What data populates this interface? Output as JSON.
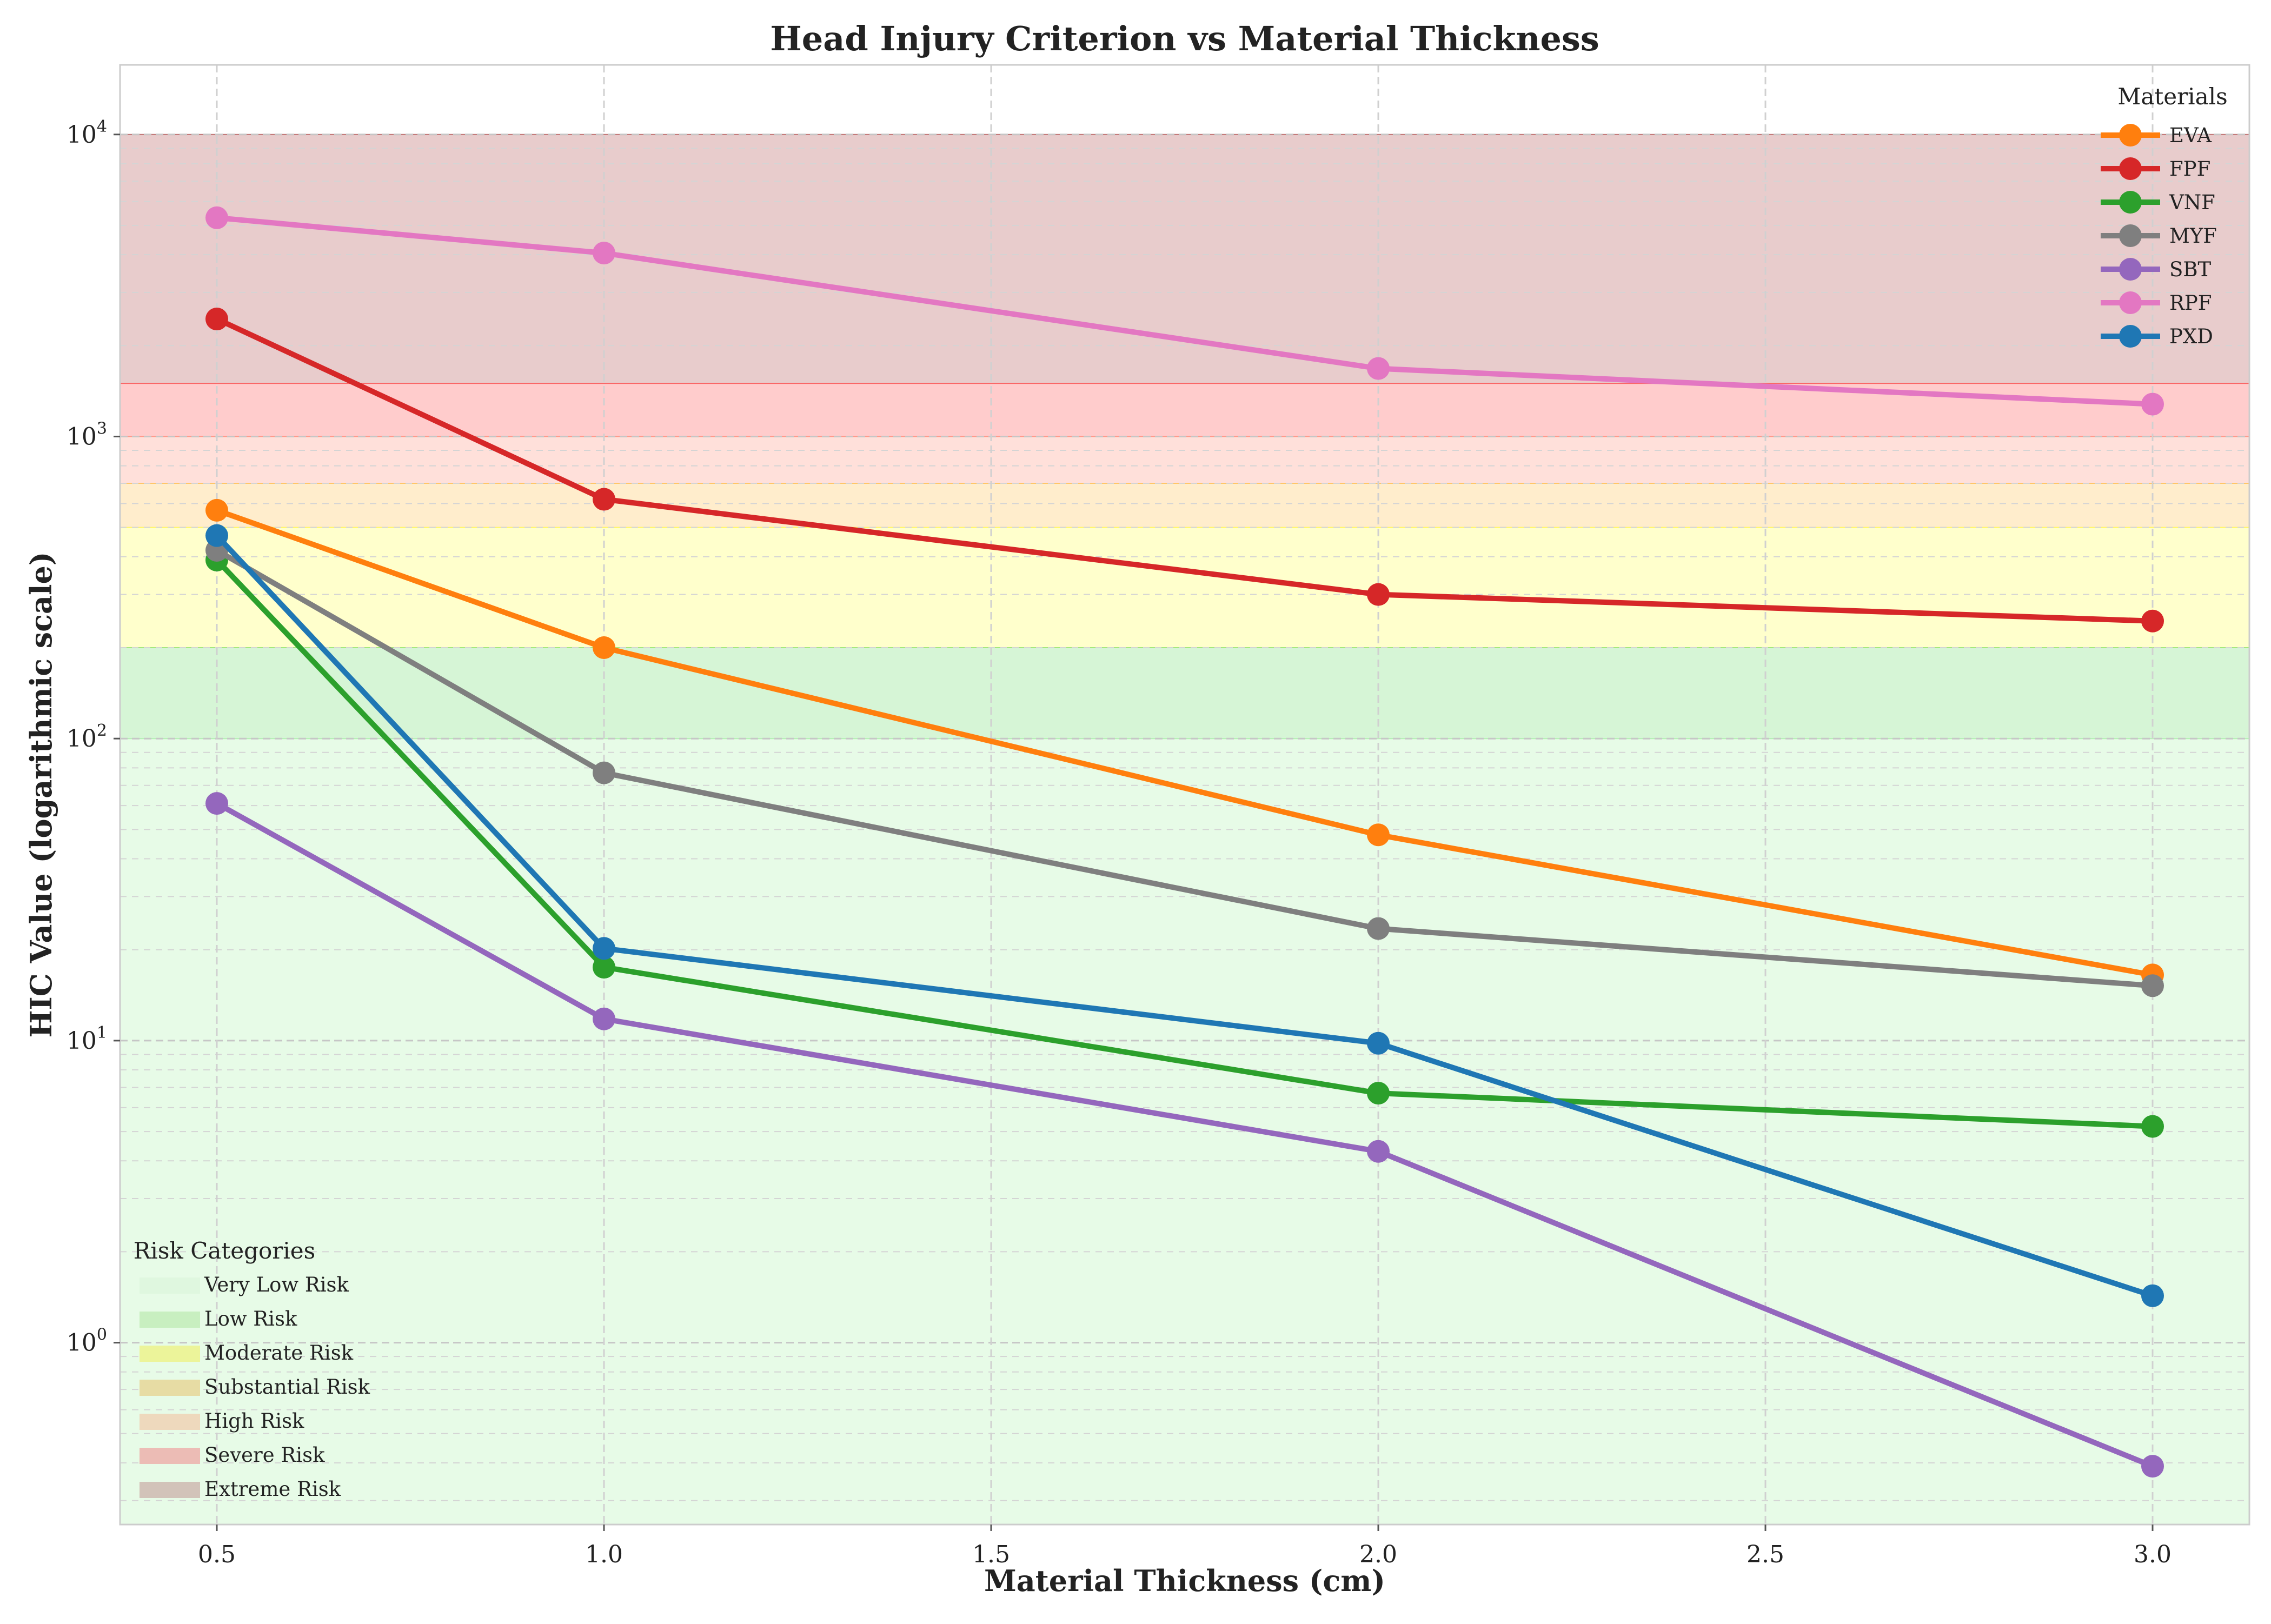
{
  "chart_data": {
    "type": "line",
    "title": "Head Injury Criterion vs Material Thickness",
    "xlabel": "Material Thickness (cm)",
    "ylabel": "HIC Value (logarithmic scale)",
    "xlim": [
      0.375,
      3.125
    ],
    "ylim": [
      0.25,
      17000
    ],
    "yscale": "log",
    "grid": true,
    "x_ticks": [
      0.5,
      1.0,
      1.5,
      2.0,
      2.5,
      3.0
    ],
    "x_tick_labels": [
      "0.5",
      "1.0",
      "1.5",
      "2.0",
      "2.5",
      "3.0"
    ],
    "y_ticks": [
      1,
      10,
      100,
      1000,
      10000
    ],
    "y_tick_labels": [
      "10^0",
      "10^1",
      "10^2",
      "10^3",
      "10^4"
    ],
    "x": [
      0.5,
      1.0,
      2.0,
      3.0
    ],
    "series": [
      {
        "name": "EVA",
        "color": "#ff7f0e",
        "values": [
          570,
          200,
          48,
          16.5
        ]
      },
      {
        "name": "FPF",
        "color": "#d62728",
        "values": [
          2450,
          620,
          300,
          245
        ]
      },
      {
        "name": "VNF",
        "color": "#2ca02c",
        "values": [
          390,
          17.5,
          6.7,
          5.2
        ]
      },
      {
        "name": "MYF",
        "color": "#7f7f7f",
        "values": [
          420,
          77,
          23.5,
          15.2
        ]
      },
      {
        "name": "SBT",
        "color": "#9467bd",
        "values": [
          61,
          11.8,
          4.3,
          0.39
        ]
      },
      {
        "name": "RPF",
        "color": "#e377c2",
        "values": [
          5300,
          4050,
          1680,
          1280
        ]
      },
      {
        "name": "PXD",
        "color": "#1f77b4",
        "values": [
          470,
          20.2,
          9.8,
          1.43
        ]
      }
    ],
    "legend_title": "Materials",
    "legend_position": "top-right",
    "risk_legend_title": "Risk Categories",
    "risk_legend_position": "bottom-left",
    "risk_bands": [
      {
        "name": "Very Low Risk",
        "from": 0,
        "to": 100,
        "color": "#90ee90",
        "opacity": 0.22
      },
      {
        "name": "Low Risk",
        "from": 100,
        "to": 200,
        "color": "#32cd32",
        "opacity": 0.2
      },
      {
        "name": "Moderate Risk",
        "from": 200,
        "to": 500,
        "color": "#ffff00",
        "opacity": 0.2
      },
      {
        "name": "Substantial Risk",
        "from": 500,
        "to": 700,
        "color": "#ffa500",
        "opacity": 0.2
      },
      {
        "name": "High Risk",
        "from": 700,
        "to": 1000,
        "color": "#ff6347",
        "opacity": 0.2
      },
      {
        "name": "Severe Risk",
        "from": 1000,
        "to": 1500,
        "color": "#ff0000",
        "opacity": 0.2
      },
      {
        "name": "Extreme Risk",
        "from": 1500,
        "to": 10000,
        "color": "#8b0000",
        "opacity": 0.2
      }
    ],
    "risk_legend_swatches": [
      "#dff7df",
      "#c8efc0",
      "#ecf49a",
      "#e7dca4",
      "#eed9bd",
      "#ecbcb5",
      "#d2c3b9"
    ]
  }
}
